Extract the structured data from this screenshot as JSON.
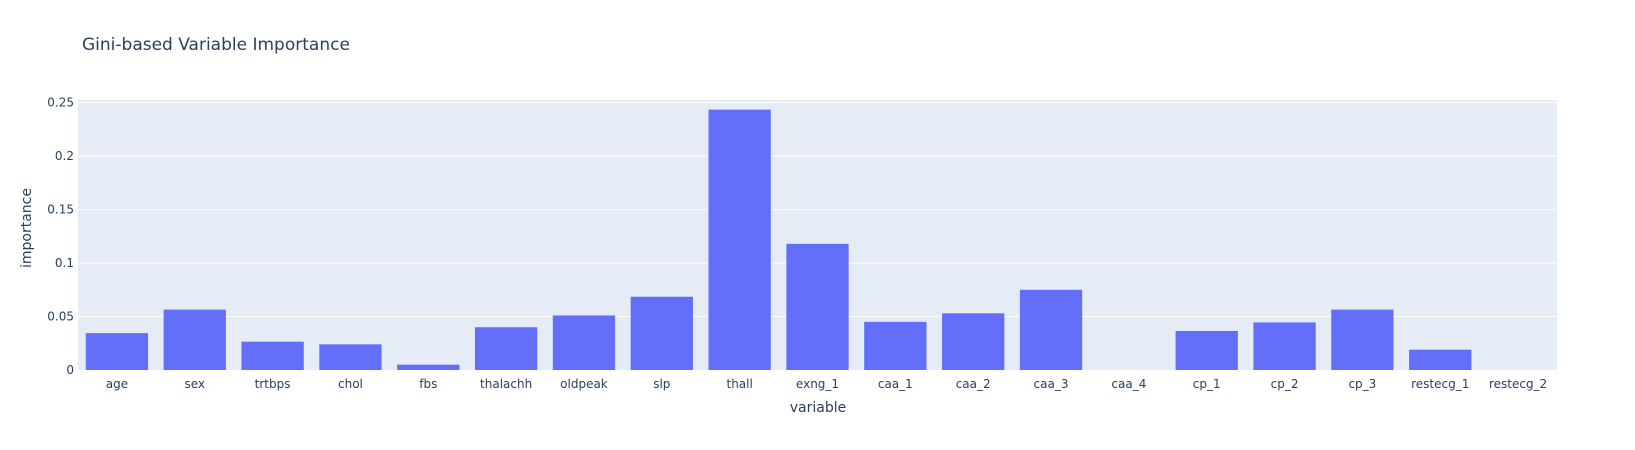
{
  "chart_data": {
    "type": "bar",
    "title": "Gini-based Variable Importance",
    "xlabel": "variable",
    "ylabel": "importance",
    "ylim": [
      0,
      0.25
    ],
    "yticks": [
      0,
      0.05,
      0.1,
      0.15,
      0.2,
      0.25
    ],
    "ytick_labels": [
      "0",
      "0.05",
      "0.1",
      "0.15",
      "0.2",
      "0.25"
    ],
    "grid": true,
    "categories": [
      "age",
      "sex",
      "trtbps",
      "chol",
      "fbs",
      "thalachh",
      "oldpeak",
      "slp",
      "thall",
      "exng_1",
      "caa_1",
      "caa_2",
      "caa_3",
      "caa_4",
      "cp_1",
      "cp_2",
      "cp_3",
      "restecg_1",
      "restecg_2"
    ],
    "values": [
      0.0345,
      0.0565,
      0.0265,
      0.024,
      0.005,
      0.04,
      0.051,
      0.0685,
      0.2435,
      0.118,
      0.045,
      0.053,
      0.075,
      0.0,
      0.0365,
      0.0445,
      0.0565,
      0.019,
      0.0
    ],
    "colors": {
      "bar": "#636efa",
      "plot_bg": "#e5ecf6",
      "grid": "#ffffff",
      "text": "#2a3f5f"
    }
  }
}
